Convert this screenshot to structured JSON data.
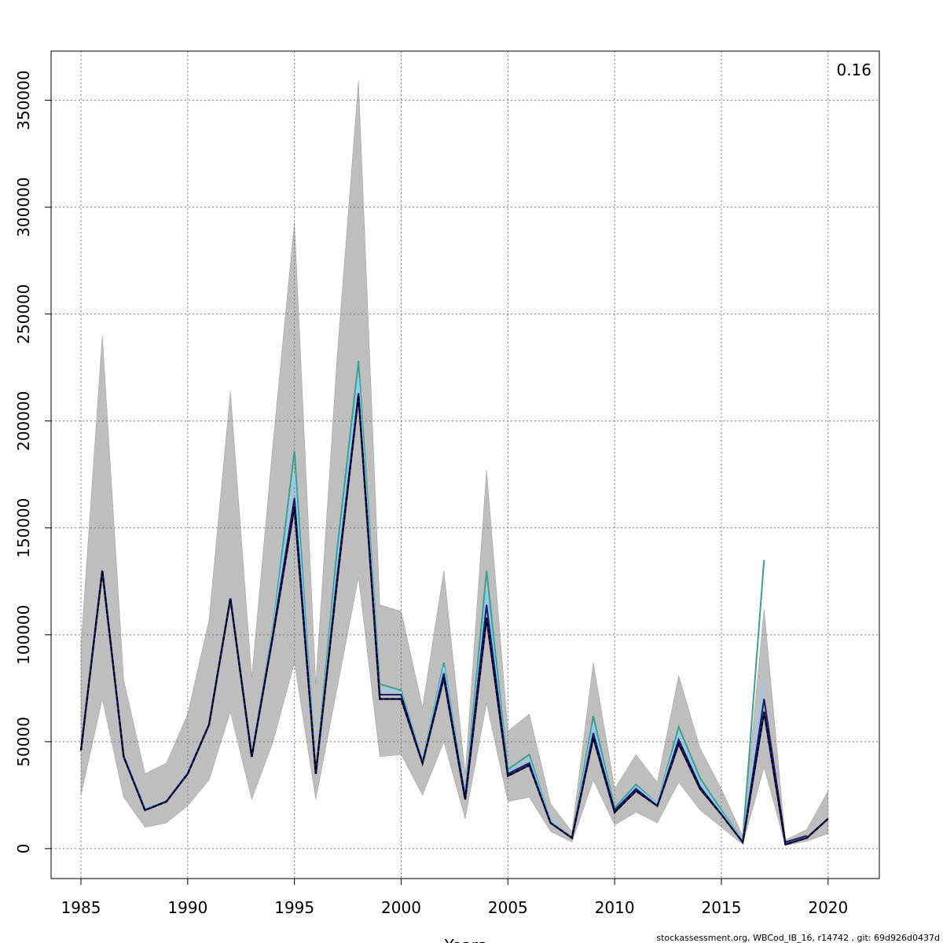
{
  "chart_data": {
    "type": "line",
    "x": [
      1985,
      1986,
      1987,
      1988,
      1989,
      1990,
      1991,
      1992,
      1993,
      1994,
      1995,
      1996,
      1997,
      1998,
      1999,
      2000,
      2001,
      2002,
      2003,
      2004,
      2005,
      2006,
      2007,
      2008,
      2009,
      2010,
      2011,
      2012,
      2013,
      2014,
      2015,
      2016,
      2017,
      2018,
      2019,
      2020
    ],
    "x_label": "Years",
    "annotation": "0.16",
    "footer": "stockassessment.org, WBCod_IB_16, r14742 , git: 69d926d0437d",
    "band": {
      "color": "#bebebe",
      "upper": [
        95000,
        240000,
        79000,
        35000,
        40000,
        63000,
        107000,
        214000,
        80000,
        190000,
        293000,
        77000,
        230000,
        359000,
        114000,
        111000,
        66000,
        130000,
        35000,
        177000,
        55000,
        63000,
        21000,
        8000,
        87000,
        28000,
        44000,
        31000,
        81000,
        47000,
        28000,
        6000,
        112000,
        4000,
        9000,
        27000
      ],
      "lower": [
        25000,
        70000,
        24000,
        10000,
        12000,
        20000,
        32000,
        64000,
        23000,
        50000,
        87000,
        23000,
        75000,
        127000,
        43000,
        44000,
        25000,
        50000,
        14000,
        68000,
        22000,
        24000,
        8000,
        3000,
        32000,
        11000,
        17000,
        12000,
        31000,
        18000,
        10000,
        2000,
        38000,
        1500,
        3500,
        7000
      ]
    },
    "series": [
      {
        "color": "#000000",
        "linestyle": "dashed",
        "values": [
          46000,
          130000,
          43000,
          18000,
          22000,
          35000,
          58000,
          117000,
          43000,
          100000,
          160000,
          35000,
          125000,
          212000,
          70000,
          70000,
          40000,
          80000,
          23000,
          108000,
          34000,
          39000,
          12000,
          5000,
          52000,
          17000,
          27000,
          20000,
          49000,
          28000,
          16000,
          3000,
          64000,
          2000,
          5000,
          14000
        ]
      },
      {
        "color": "#1a1a6e",
        "linestyle": "solid",
        "values": [
          46000,
          130000,
          43000,
          18000,
          22000,
          35000,
          58000,
          117000,
          43000,
          101000,
          164000,
          35000,
          127000,
          213000,
          72000,
          72000,
          40000,
          82000,
          24000,
          114000,
          35000,
          40000,
          12000,
          5000,
          54000,
          18000,
          28000,
          20000,
          51000,
          29000,
          16000,
          3000,
          70000,
          3000,
          6000,
          null
        ]
      },
      {
        "color": "#87cefa",
        "linestyle": "solid",
        "values": [
          46000,
          131000,
          44000,
          19000,
          22000,
          36000,
          58000,
          118000,
          44000,
          103000,
          175000,
          35000,
          133000,
          220000,
          75000,
          73000,
          41000,
          85000,
          25000,
          120000,
          36000,
          42000,
          13000,
          5000,
          58000,
          18000,
          29000,
          21000,
          54000,
          31000,
          17000,
          4000,
          78000,
          null,
          null,
          null
        ]
      },
      {
        "color": "#3aa08c",
        "linestyle": "solid",
        "values": [
          46000,
          131000,
          44000,
          19000,
          22000,
          36000,
          58000,
          118000,
          44000,
          104000,
          186000,
          35000,
          140000,
          228000,
          77000,
          74000,
          41000,
          87000,
          25000,
          130000,
          37000,
          44000,
          13000,
          5000,
          62000,
          19000,
          30000,
          21000,
          57000,
          33000,
          18000,
          4000,
          135000,
          null,
          null,
          null
        ]
      }
    ],
    "xlim": [
      1983.6,
      2022.4
    ],
    "ylim": [
      -14000,
      373000
    ],
    "xticks": [
      1985,
      1990,
      1995,
      2000,
      2005,
      2010,
      2015,
      2020
    ],
    "yticks": [
      0,
      50000,
      100000,
      150000,
      200000,
      250000,
      300000,
      350000
    ],
    "grid": true
  }
}
